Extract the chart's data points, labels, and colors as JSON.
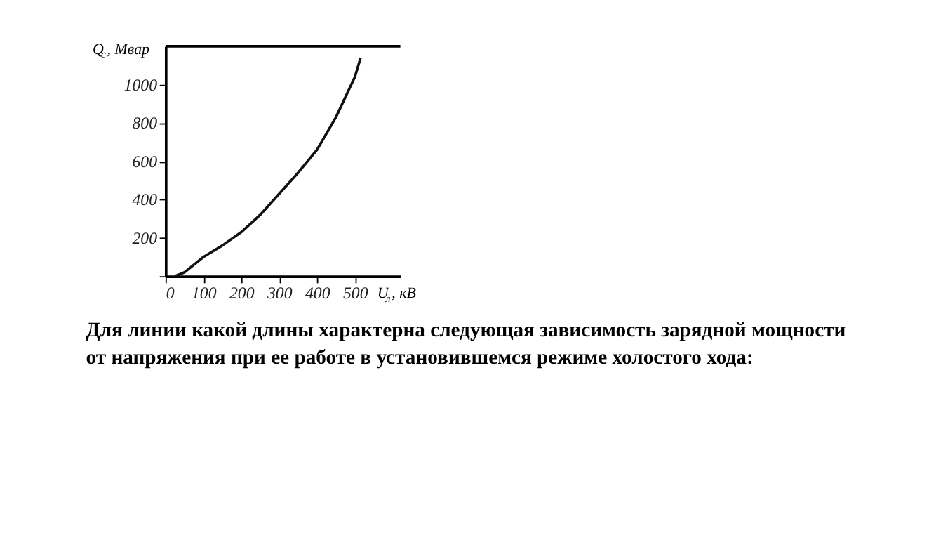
{
  "chart_data": {
    "type": "line",
    "xlabel": "U$_{л}$, кВ",
    "ylabel": "Q$_{c}$, Мвар",
    "x": [
      25,
      50,
      100,
      150,
      200,
      250,
      300,
      350,
      400,
      450,
      500,
      515
    ],
    "series": [
      {
        "color": "#111111",
        "values": [
          0,
          20,
          100,
          160,
          230,
          320,
          430,
          540,
          660,
          830,
          1040,
          1140
        ]
      }
    ],
    "xlim": [
      0,
      620
    ],
    "ylim": [
      0,
      1200
    ],
    "xticks": [
      0,
      100,
      200,
      300,
      400,
      500
    ],
    "yticks": [
      {
        "value": 0,
        "label": null
      },
      200,
      400,
      600,
      800,
      1000
    ],
    "grid": false,
    "legend": false,
    "marker": "none",
    "line_style": "solid",
    "annotations": [
      "Для линии какой длины характерна следующая зависимость зарядной мощности\nот напряжения при ее работе в установившемся режиме холостого хода:"
    ]
  }
}
